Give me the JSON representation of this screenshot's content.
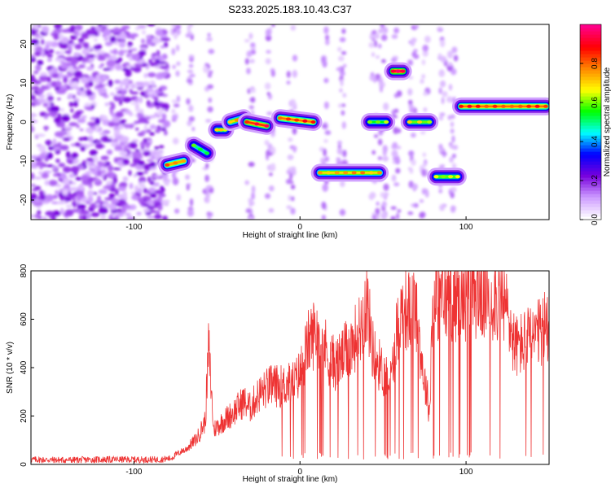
{
  "title": "S233.2025.183.10.43.C37",
  "chart_data": [
    {
      "type": "heatmap",
      "xlabel": "Height of straight line (km)",
      "ylabel": "Frequency (Hz)",
      "xlim": [
        -162,
        150
      ],
      "ylim": [
        -25,
        25
      ],
      "xticks": [
        -100,
        0,
        100
      ],
      "xtick_labels": [
        "-100",
        "0",
        "100"
      ],
      "yticks": [
        -20,
        -10,
        0,
        10,
        20
      ],
      "ytick_labels": [
        "-20",
        "-10",
        "0",
        "10",
        "20"
      ],
      "colorbar": {
        "label": "Normalized spectral amplitude",
        "range": [
          0,
          1
        ],
        "ticks": [
          0,
          0.2,
          0.4,
          0.6,
          0.8
        ],
        "tick_labels": [
          "0.0",
          "0.2",
          "0.4",
          "0.6",
          "0.8"
        ],
        "colors": [
          "#ffffff",
          "#cc99ff",
          "#7700dd",
          "#0000ff",
          "#00ffff",
          "#00ff00",
          "#ffff00",
          "#ff8800",
          "#ff0000",
          "#ff0088"
        ]
      },
      "tracks": [
        {
          "x": [
            -80,
            -70
          ],
          "y": [
            -11,
            -10
          ],
          "amp": 0.75
        },
        {
          "x": [
            -64,
            -56
          ],
          "y": [
            -6,
            -8
          ],
          "amp": 0.5
        },
        {
          "x": [
            -50,
            -45
          ],
          "y": [
            -2,
            -2
          ],
          "amp": 0.6
        },
        {
          "x": [
            -42,
            -34
          ],
          "y": [
            0,
            1
          ],
          "amp": 0.7
        },
        {
          "x": [
            -32,
            -20
          ],
          "y": [
            0,
            -1
          ],
          "amp": 0.85
        },
        {
          "x": [
            -12,
            8
          ],
          "y": [
            1,
            0
          ],
          "amp": 0.8
        },
        {
          "x": [
            12,
            48
          ],
          "y": [
            -13,
            -13
          ],
          "amp": 0.7
        },
        {
          "x": [
            42,
            52
          ],
          "y": [
            0,
            0
          ],
          "amp": 0.55
        },
        {
          "x": [
            56,
            62
          ],
          "y": [
            13,
            13
          ],
          "amp": 0.9
        },
        {
          "x": [
            66,
            78
          ],
          "y": [
            0,
            0
          ],
          "amp": 0.6
        },
        {
          "x": [
            82,
            95
          ],
          "y": [
            -14,
            -14
          ],
          "amp": 0.6
        },
        {
          "x": [
            97,
            148
          ],
          "y": [
            4,
            4
          ],
          "amp": 0.8
        }
      ]
    },
    {
      "type": "line",
      "xlabel": "Height of straight line (km)",
      "ylabel": "SNR (10 * v/v)",
      "xlim": [
        -162,
        150
      ],
      "ylim": [
        0,
        800
      ],
      "xticks": [
        -100,
        0,
        100
      ],
      "xtick_labels": [
        "-100",
        "0",
        "100"
      ],
      "yticks": [
        0,
        200,
        400,
        600,
        800
      ],
      "ytick_labels": [
        "0",
        "200",
        "400",
        "600",
        "800"
      ],
      "series": [
        {
          "color": "#ee3333",
          "x": [
            -162,
            -140,
            -120,
            -100,
            -85,
            -78,
            -70,
            -62,
            -57,
            -55,
            -52,
            -46,
            -40,
            -34,
            -30,
            -25,
            -18,
            -10,
            -3,
            0,
            5,
            10,
            14,
            18,
            22,
            28,
            32,
            36,
            38,
            40,
            44,
            50,
            55,
            58,
            62,
            66,
            70,
            72,
            75,
            77,
            78,
            80,
            85,
            90,
            95,
            100,
            105,
            110,
            115,
            120,
            125,
            128,
            130,
            135,
            140,
            145,
            150
          ],
          "y": [
            20,
            18,
            20,
            20,
            20,
            25,
            60,
            120,
            200,
            540,
            160,
            200,
            240,
            290,
            260,
            320,
            360,
            360,
            380,
            420,
            560,
            620,
            560,
            480,
            460,
            520,
            560,
            620,
            680,
            760,
            520,
            420,
            390,
            600,
            720,
            700,
            720,
            560,
            380,
            300,
            230,
            780,
            760,
            770,
            770,
            780,
            790,
            780,
            780,
            760,
            700,
            580,
            540,
            560,
            580,
            600,
            660
          ]
        }
      ]
    }
  ]
}
